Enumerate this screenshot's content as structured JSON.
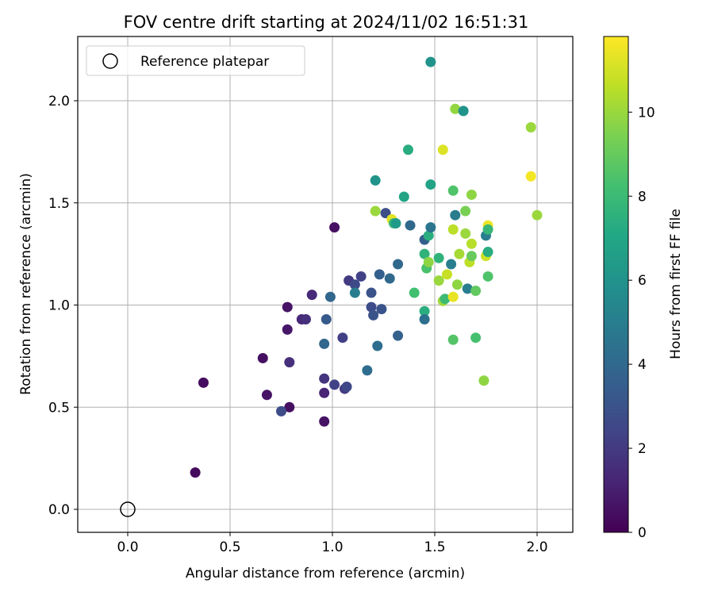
{
  "chart_data": {
    "type": "scatter",
    "title": "FOV centre drift starting at 2024/11/02 16:51:31",
    "xlabel": "Angular distance from reference (arcmin)",
    "ylabel": "Rotation from reference (arcmin)",
    "xlim": [
      -0.25,
      2.17
    ],
    "ylim": [
      -0.11,
      2.31
    ],
    "xticks": [
      "0.0",
      "0.5",
      "1.0",
      "1.5",
      "2.0"
    ],
    "yticks": [
      "0.0",
      "0.5",
      "1.0",
      "1.5",
      "2.0"
    ],
    "grid": true,
    "legend": {
      "placement": "top-left",
      "entries": [
        "Reference platepar"
      ]
    },
    "reference_point": {
      "x": 0.0,
      "y": 0.0
    },
    "colorbar": {
      "label": "Hours from first FF file",
      "colormap": "viridis",
      "range": [
        0,
        11.8
      ],
      "ticks": [
        "0",
        "2",
        "4",
        "6",
        "8",
        "10"
      ]
    },
    "points": [
      {
        "x": 0.33,
        "y": 0.18,
        "c": 0.3
      },
      {
        "x": 0.37,
        "y": 0.62,
        "c": 0.4
      },
      {
        "x": 0.66,
        "y": 0.74,
        "c": 0.5
      },
      {
        "x": 0.68,
        "y": 0.56,
        "c": 0.6
      },
      {
        "x": 0.78,
        "y": 0.99,
        "c": 0.6
      },
      {
        "x": 0.78,
        "y": 0.88,
        "c": 0.7
      },
      {
        "x": 0.79,
        "y": 0.5,
        "c": 0.5
      },
      {
        "x": 0.79,
        "y": 0.72,
        "c": 1.6
      },
      {
        "x": 0.75,
        "y": 0.48,
        "c": 2.7
      },
      {
        "x": 0.85,
        "y": 0.93,
        "c": 1.3
      },
      {
        "x": 0.87,
        "y": 0.93,
        "c": 1.6
      },
      {
        "x": 0.9,
        "y": 1.05,
        "c": 1.4
      },
      {
        "x": 0.96,
        "y": 0.64,
        "c": 1.8
      },
      {
        "x": 0.96,
        "y": 0.57,
        "c": 1.2
      },
      {
        "x": 0.96,
        "y": 0.43,
        "c": 0.6
      },
      {
        "x": 0.96,
        "y": 0.81,
        "c": 3.9
      },
      {
        "x": 0.97,
        "y": 0.93,
        "c": 3.3
      },
      {
        "x": 0.99,
        "y": 1.04,
        "c": 3.9
      },
      {
        "x": 1.01,
        "y": 1.38,
        "c": 0.5
      },
      {
        "x": 1.01,
        "y": 0.61,
        "c": 2.3
      },
      {
        "x": 1.05,
        "y": 0.84,
        "c": 2.2
      },
      {
        "x": 1.06,
        "y": 0.59,
        "c": 2.0
      },
      {
        "x": 1.07,
        "y": 0.6,
        "c": 2.6
      },
      {
        "x": 1.08,
        "y": 1.12,
        "c": 2.0
      },
      {
        "x": 1.11,
        "y": 1.1,
        "c": 2.6
      },
      {
        "x": 1.11,
        "y": 1.06,
        "c": 5.0
      },
      {
        "x": 1.14,
        "y": 1.14,
        "c": 2.3
      },
      {
        "x": 1.17,
        "y": 0.68,
        "c": 4.2
      },
      {
        "x": 1.19,
        "y": 1.06,
        "c": 3.0
      },
      {
        "x": 1.19,
        "y": 0.99,
        "c": 2.7
      },
      {
        "x": 1.2,
        "y": 0.95,
        "c": 3.0
      },
      {
        "x": 1.21,
        "y": 1.61,
        "c": 6.0
      },
      {
        "x": 1.21,
        "y": 1.46,
        "c": 10.0
      },
      {
        "x": 1.22,
        "y": 0.8,
        "c": 4.2
      },
      {
        "x": 1.23,
        "y": 1.15,
        "c": 3.6
      },
      {
        "x": 1.24,
        "y": 0.98,
        "c": 3.0
      },
      {
        "x": 1.26,
        "y": 1.45,
        "c": 2.8
      },
      {
        "x": 1.28,
        "y": 1.13,
        "c": 4.0
      },
      {
        "x": 1.29,
        "y": 1.42,
        "c": 11.3
      },
      {
        "x": 1.3,
        "y": 1.4,
        "c": 8.0
      },
      {
        "x": 1.31,
        "y": 1.4,
        "c": 6.4
      },
      {
        "x": 1.32,
        "y": 1.2,
        "c": 4.0
      },
      {
        "x": 1.32,
        "y": 0.85,
        "c": 3.7
      },
      {
        "x": 1.35,
        "y": 1.53,
        "c": 6.9
      },
      {
        "x": 1.37,
        "y": 1.76,
        "c": 7.3
      },
      {
        "x": 1.38,
        "y": 1.39,
        "c": 4.0
      },
      {
        "x": 1.4,
        "y": 1.06,
        "c": 8.2
      },
      {
        "x": 1.45,
        "y": 1.32,
        "c": 3.6
      },
      {
        "x": 1.45,
        "y": 1.25,
        "c": 7.6
      },
      {
        "x": 1.45,
        "y": 0.97,
        "c": 7.4
      },
      {
        "x": 1.45,
        "y": 0.93,
        "c": 4.3
      },
      {
        "x": 1.46,
        "y": 1.18,
        "c": 8.4
      },
      {
        "x": 1.47,
        "y": 1.34,
        "c": 7.4
      },
      {
        "x": 1.47,
        "y": 1.21,
        "c": 9.8
      },
      {
        "x": 1.48,
        "y": 1.38,
        "c": 4.6
      },
      {
        "x": 1.48,
        "y": 2.19,
        "c": 6.0
      },
      {
        "x": 1.48,
        "y": 1.59,
        "c": 6.8
      },
      {
        "x": 1.52,
        "y": 1.23,
        "c": 7.6
      },
      {
        "x": 1.52,
        "y": 1.12,
        "c": 10.0
      },
      {
        "x": 1.54,
        "y": 1.02,
        "c": 10.1
      },
      {
        "x": 1.54,
        "y": 1.76,
        "c": 11.2
      },
      {
        "x": 1.55,
        "y": 1.03,
        "c": 8.0
      },
      {
        "x": 1.56,
        "y": 1.15,
        "c": 10.8
      },
      {
        "x": 1.58,
        "y": 1.2,
        "c": 5.0
      },
      {
        "x": 1.59,
        "y": 1.56,
        "c": 8.5
      },
      {
        "x": 1.59,
        "y": 1.37,
        "c": 10.6
      },
      {
        "x": 1.59,
        "y": 1.04,
        "c": 11.4
      },
      {
        "x": 1.59,
        "y": 0.83,
        "c": 8.6
      },
      {
        "x": 1.6,
        "y": 1.96,
        "c": 9.9
      },
      {
        "x": 1.6,
        "y": 1.44,
        "c": 4.9
      },
      {
        "x": 1.61,
        "y": 1.1,
        "c": 9.8
      },
      {
        "x": 1.62,
        "y": 1.25,
        "c": 10.2
      },
      {
        "x": 1.64,
        "y": 1.95,
        "c": 6.0
      },
      {
        "x": 1.65,
        "y": 1.35,
        "c": 10.0
      },
      {
        "x": 1.65,
        "y": 1.46,
        "c": 9.4
      },
      {
        "x": 1.66,
        "y": 1.08,
        "c": 5.0
      },
      {
        "x": 1.67,
        "y": 1.21,
        "c": 10.6
      },
      {
        "x": 1.68,
        "y": 1.3,
        "c": 10.5
      },
      {
        "x": 1.68,
        "y": 1.24,
        "c": 9.0
      },
      {
        "x": 1.68,
        "y": 1.54,
        "c": 9.8
      },
      {
        "x": 1.7,
        "y": 1.07,
        "c": 8.9
      },
      {
        "x": 1.7,
        "y": 0.84,
        "c": 8.3
      },
      {
        "x": 1.74,
        "y": 0.63,
        "c": 9.8
      },
      {
        "x": 1.75,
        "y": 1.34,
        "c": 5.0
      },
      {
        "x": 1.75,
        "y": 1.24,
        "c": 10.9
      },
      {
        "x": 1.76,
        "y": 1.39,
        "c": 11.5
      },
      {
        "x": 1.76,
        "y": 1.37,
        "c": 7.8
      },
      {
        "x": 1.76,
        "y": 1.26,
        "c": 7.3
      },
      {
        "x": 1.76,
        "y": 1.14,
        "c": 8.5
      },
      {
        "x": 1.97,
        "y": 1.87,
        "c": 10.0
      },
      {
        "x": 1.97,
        "y": 1.63,
        "c": 11.6
      },
      {
        "x": 2.0,
        "y": 1.44,
        "c": 10.0
      }
    ]
  }
}
